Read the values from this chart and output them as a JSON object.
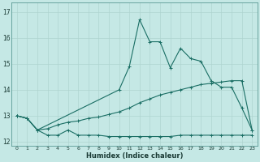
{
  "xlabel": "Humidex (Indice chaleur)",
  "bg_color": "#c5e8e5",
  "grid_color": "#afd4d0",
  "line_color": "#1a6e64",
  "xlim": [
    -0.5,
    23.5
  ],
  "ylim": [
    11.85,
    17.35
  ],
  "yticks": [
    12,
    13,
    14,
    15,
    16,
    17
  ],
  "xticks": [
    0,
    1,
    2,
    3,
    4,
    5,
    6,
    7,
    8,
    9,
    10,
    11,
    12,
    13,
    14,
    15,
    16,
    17,
    18,
    19,
    20,
    21,
    22,
    23
  ],
  "s1_x": [
    0,
    1,
    2,
    3,
    4,
    5,
    6,
    7,
    8,
    9,
    10,
    11,
    12,
    13,
    14,
    15,
    16,
    17,
    18,
    19,
    20,
    21,
    22,
    23
  ],
  "s1_y": [
    13.0,
    12.9,
    12.45,
    12.25,
    12.25,
    12.45,
    12.25,
    12.25,
    12.25,
    12.2,
    12.2,
    12.2,
    12.2,
    12.2,
    12.2,
    12.2,
    12.25,
    12.25,
    12.25,
    12.25,
    12.25,
    12.25,
    12.25,
    12.25
  ],
  "s2_x": [
    0,
    1,
    2,
    3,
    4,
    5,
    6,
    7,
    8,
    9,
    10,
    11,
    12,
    13,
    14,
    15,
    16,
    17,
    18,
    19,
    20,
    21,
    22,
    23
  ],
  "s2_y": [
    13.0,
    12.9,
    12.45,
    12.5,
    12.65,
    12.75,
    12.8,
    12.9,
    12.95,
    13.05,
    13.15,
    13.3,
    13.5,
    13.65,
    13.8,
    13.9,
    14.0,
    14.1,
    14.2,
    14.25,
    14.3,
    14.35,
    14.35,
    12.45
  ],
  "s3_x": [
    0,
    1,
    2,
    10,
    11,
    12,
    13,
    14,
    15,
    16,
    17,
    18,
    19,
    20,
    21,
    22,
    23
  ],
  "s3_y": [
    13.0,
    12.9,
    12.45,
    14.0,
    14.9,
    16.7,
    15.85,
    15.85,
    14.85,
    15.6,
    15.2,
    15.1,
    14.35,
    14.1,
    14.1,
    13.3,
    12.45
  ]
}
